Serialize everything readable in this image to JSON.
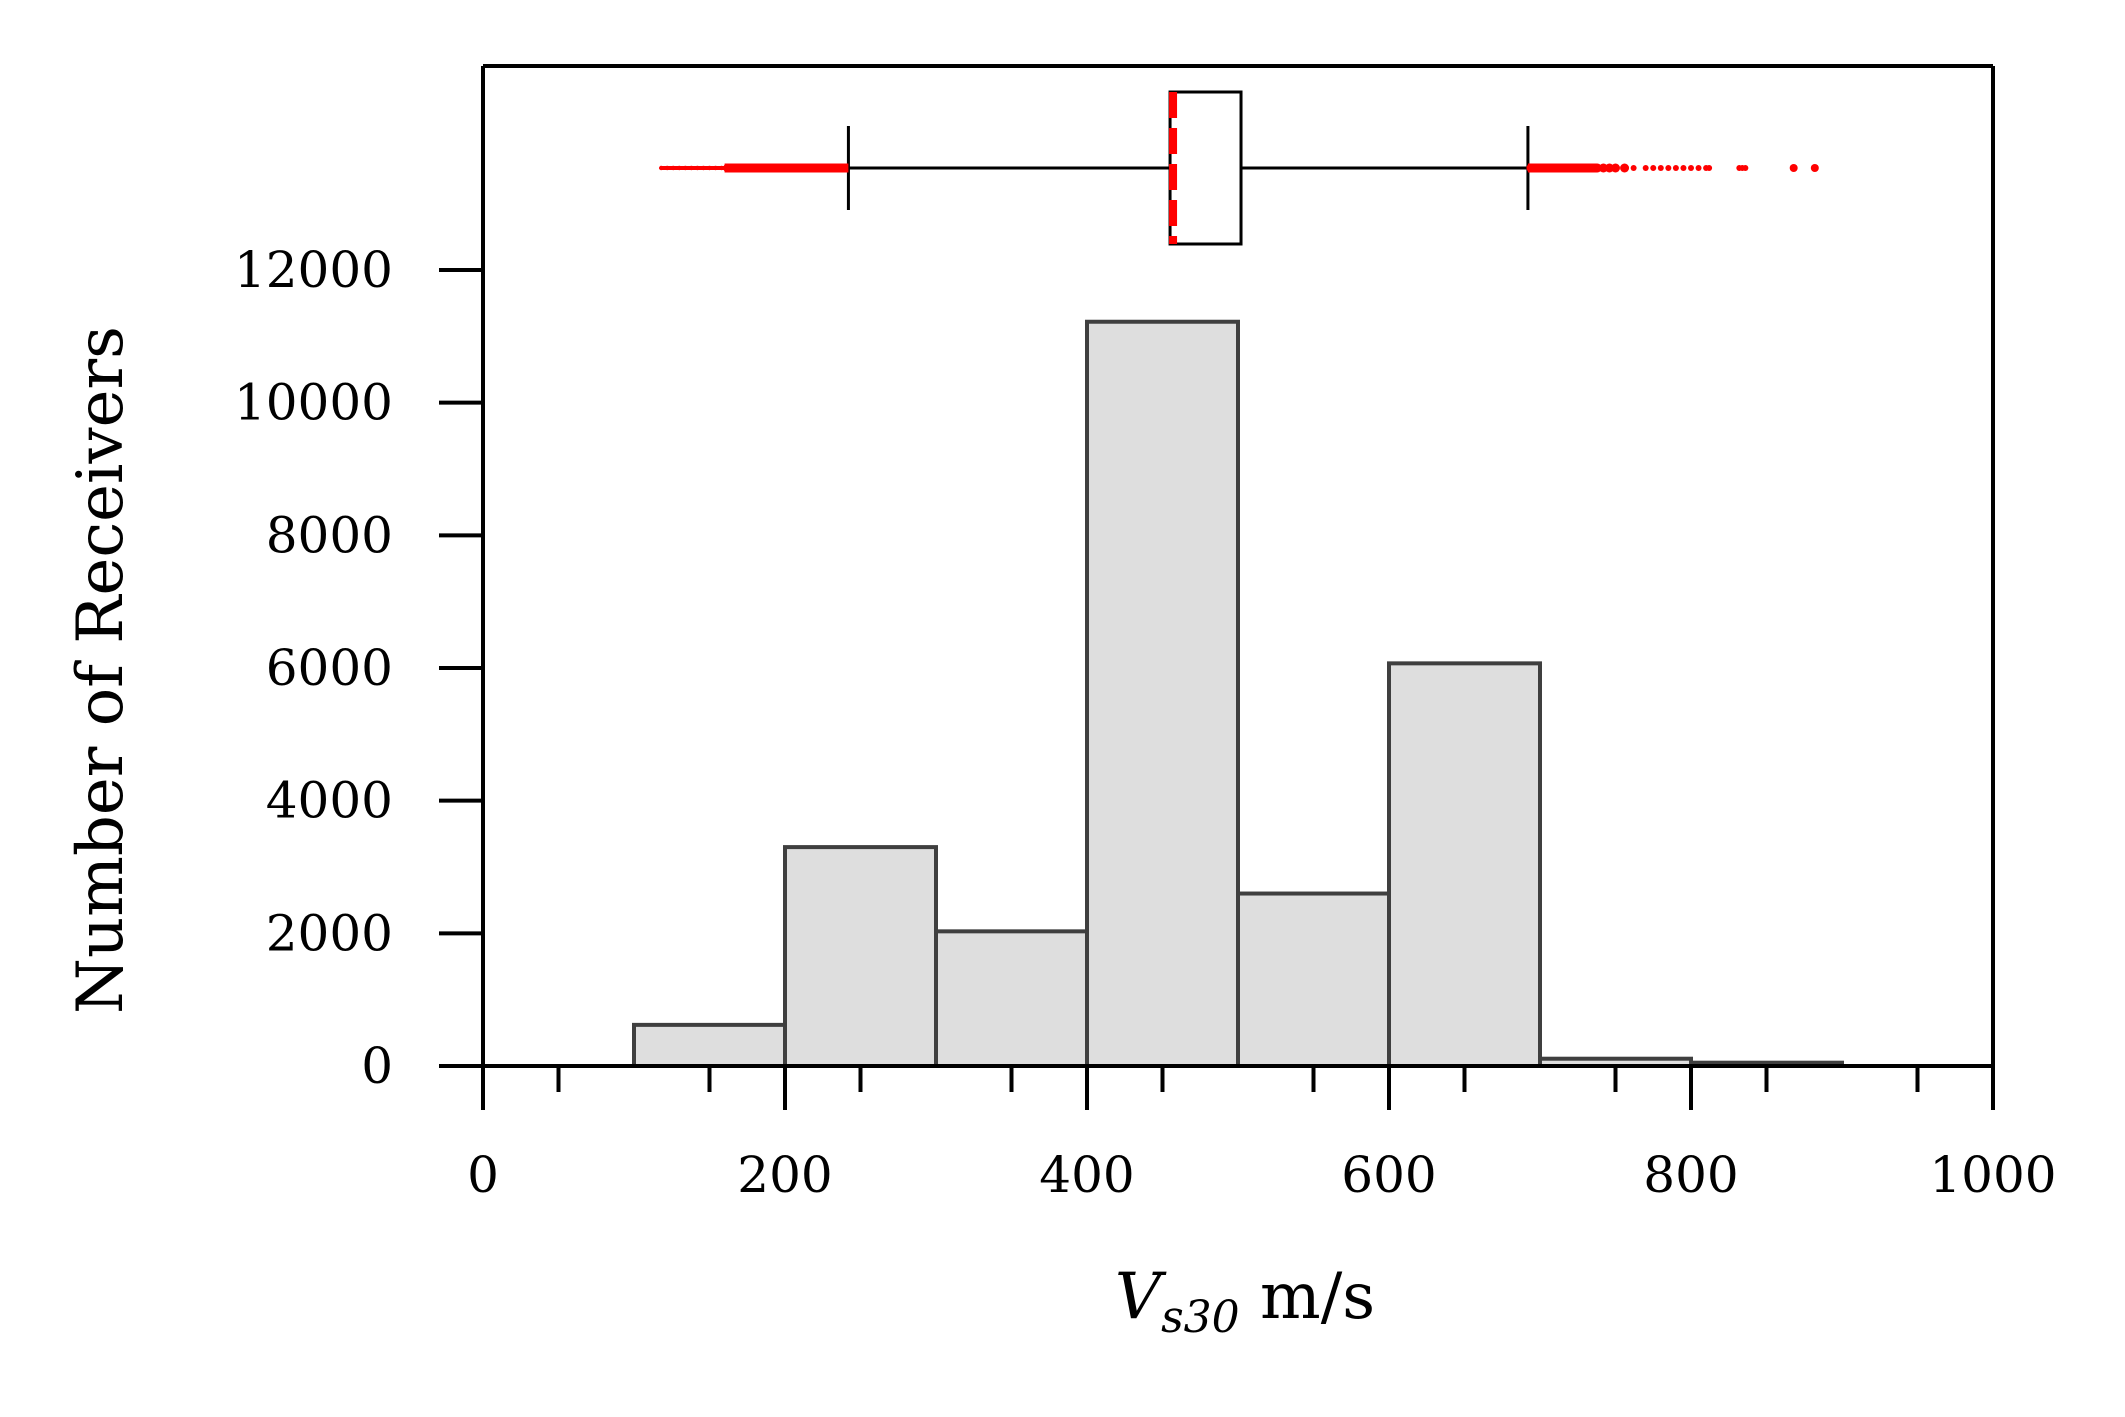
{
  "chart_data": {
    "type": "bar",
    "xlabel_main": "V",
    "xlabel_sub": "s30",
    "xlabel_unit": " m/s",
    "ylabel": "Number of Receivers",
    "xlim": [
      0,
      1000
    ],
    "ylim": [
      0,
      12000
    ],
    "x_ticks": [
      "0",
      "200",
      "400",
      "600",
      "800",
      "1000"
    ],
    "y_ticks": [
      "0",
      "2000",
      "4000",
      "6000",
      "8000",
      "10000",
      "12000"
    ],
    "x_tick_values": [
      0,
      200,
      400,
      600,
      800,
      1000
    ],
    "y_tick_values": [
      0,
      2000,
      4000,
      6000,
      8000,
      10000,
      12000
    ],
    "bins": [
      {
        "start": 100,
        "end": 200,
        "count": 620
      },
      {
        "start": 200,
        "end": 300,
        "count": 3300
      },
      {
        "start": 300,
        "end": 400,
        "count": 2030
      },
      {
        "start": 400,
        "end": 500,
        "count": 11220
      },
      {
        "start": 500,
        "end": 600,
        "count": 2600
      },
      {
        "start": 600,
        "end": 700,
        "count": 6070
      },
      {
        "start": 700,
        "end": 800,
        "count": 110
      },
      {
        "start": 800,
        "end": 900,
        "count": 50
      }
    ],
    "boxplot": {
      "whisker_low": 242,
      "q1": 455,
      "median": 455,
      "q3": 502,
      "whisker_high": 692,
      "median_style": "red dashed",
      "outliers_low": [
        118,
        122,
        126,
        130,
        134,
        138,
        142,
        146,
        150,
        154,
        158,
        162,
        166,
        170,
        174,
        178,
        182,
        186,
        190,
        194,
        198,
        202,
        206,
        210,
        214,
        218,
        222,
        226,
        230,
        234,
        238
      ],
      "outliers_high": [
        694,
        698,
        702,
        706,
        710,
        714,
        718,
        722,
        726,
        730,
        734,
        738,
        742,
        746,
        750,
        756,
        762,
        770,
        775,
        780,
        785,
        790,
        795,
        800,
        805,
        810,
        812,
        832,
        834,
        836,
        868,
        882
      ]
    },
    "colors": {
      "bar_fill": "#dedede",
      "bar_edge": "#3f3f3f",
      "outlier": "#ff0000",
      "median": "#ff0000"
    }
  }
}
